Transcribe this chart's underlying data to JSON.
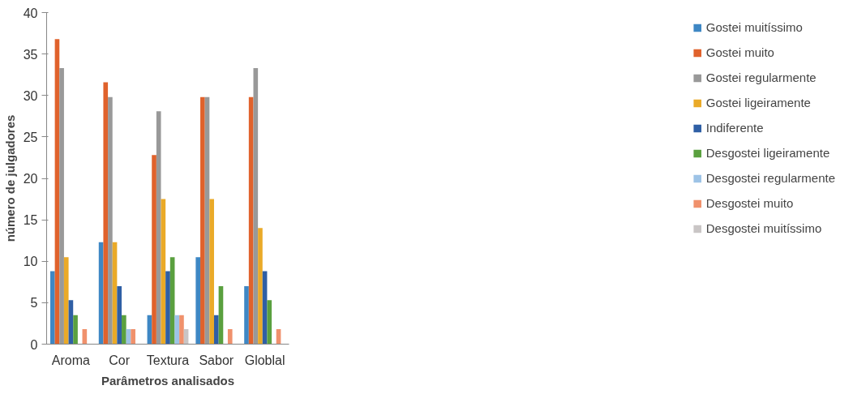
{
  "chart_data": {
    "type": "bar",
    "xlabel": "Parâmetros analisados",
    "ylabel": "número de julgadores",
    "categories": [
      "Aroma",
      "Cor",
      "Textura",
      "Sabor",
      "Globlal"
    ],
    "ylim": [
      0,
      40
    ],
    "yticks": [
      0,
      5,
      10,
      15,
      20,
      25,
      30,
      35,
      40
    ],
    "grid": false,
    "legend": "right",
    "series": [
      {
        "name": "Gostei muitíssimo",
        "color": "#3e87c4",
        "values": [
          8.8,
          12.3,
          3.5,
          10.5,
          7.0
        ]
      },
      {
        "name": "Gostei muito",
        "color": "#e0622c",
        "values": [
          36.8,
          31.6,
          22.8,
          29.8,
          29.8
        ]
      },
      {
        "name": "Gostei regularmente",
        "color": "#999999",
        "values": [
          33.3,
          29.8,
          28.1,
          29.8,
          33.3
        ]
      },
      {
        "name": "Gostei ligeiramente",
        "color": "#eaaa28",
        "values": [
          10.5,
          12.3,
          17.5,
          17.5,
          14.0
        ]
      },
      {
        "name": "Indiferente",
        "color": "#2f5fa5",
        "values": [
          5.3,
          7.0,
          8.8,
          3.5,
          8.8
        ]
      },
      {
        "name": "Desgostei ligeiramente",
        "color": "#5aa03f",
        "values": [
          3.5,
          3.5,
          10.5,
          7.0,
          5.3
        ]
      },
      {
        "name": "Desgostei regularmente",
        "color": "#9dc3e6",
        "values": [
          0,
          1.8,
          3.5,
          0,
          0
        ]
      },
      {
        "name": "Desgostei muito",
        "color": "#f0916c",
        "values": [
          1.8,
          1.8,
          3.5,
          1.8,
          1.8
        ]
      },
      {
        "name": "Desgostei muitíssimo",
        "color": "#c9c5c5",
        "values": [
          0,
          0,
          1.8,
          0,
          0
        ]
      }
    ]
  }
}
